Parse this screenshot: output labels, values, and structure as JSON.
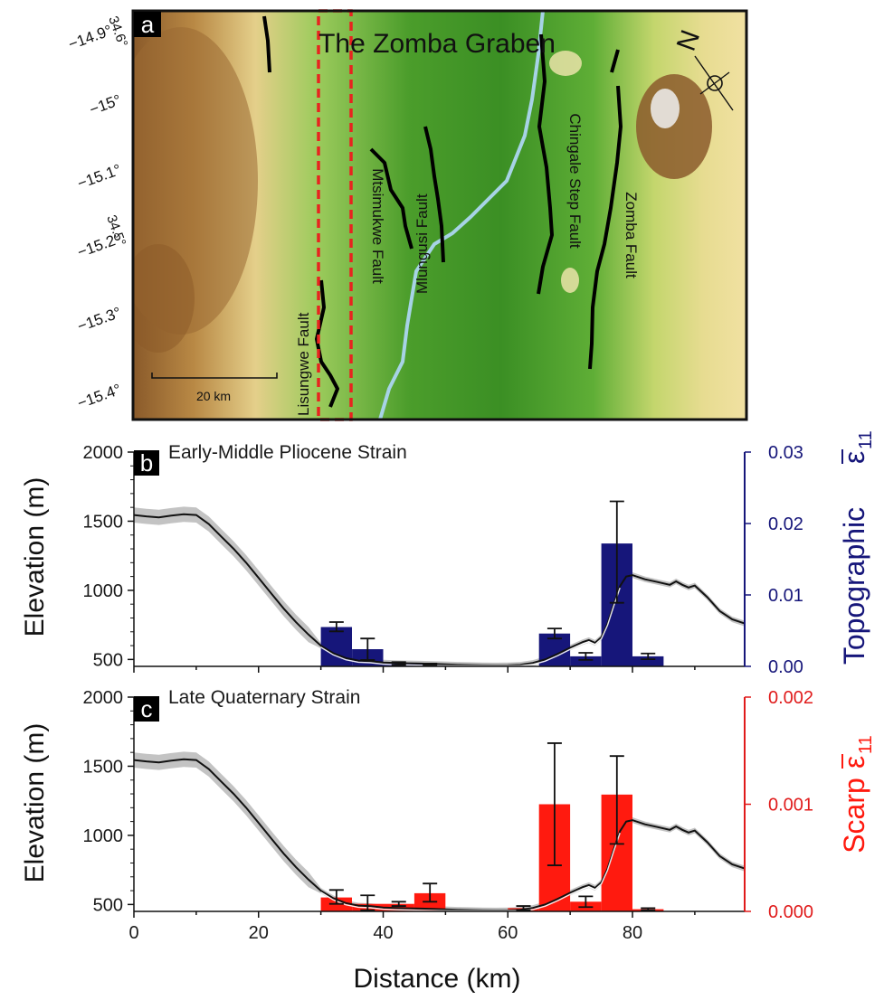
{
  "colors": {
    "topographic": "#16167a",
    "scarp": "#ff1a0f",
    "scarp_axis": "#e01b1b",
    "profile": "#111111",
    "envelope": "#bdbdbd",
    "river": "#a7d3e6",
    "fault": "#000000",
    "box": "#e8231f"
  },
  "map": {
    "panel_letter": "a",
    "title": "The Zomba Graben",
    "lat_labels": [
      "−14.9°",
      "−15°",
      "−15.1°",
      "−15.2°",
      "−15.3°",
      "−15.4°"
    ],
    "lon_labels": [
      "34.6°",
      "34.5°"
    ],
    "faults": [
      "Lisungwe Fault",
      "Mtsimukwe Fault",
      "Mlungusi Fault",
      "Chingale Step Fault",
      "Zomba Fault"
    ],
    "scalebar": "20 km",
    "north": "N"
  },
  "chart_data": [
    {
      "type": "bar",
      "panel": "b",
      "title": "Early-Middle Pliocene Strain",
      "xlabel": "",
      "ylabel": "Elevation (m)",
      "y2label_text": "Topographic",
      "y2label_symbol": "ε",
      "y2label_subscript": "11",
      "xlim": [
        0,
        98
      ],
      "ylim": [
        450,
        2000
      ],
      "y_ticks": [
        "500",
        "1000",
        "1500",
        "2000"
      ],
      "y2lim": [
        0,
        0.03
      ],
      "y2_ticks": [
        "0.00",
        "0.01",
        "0.02",
        "0.03"
      ],
      "bar_width": 5,
      "bars": [
        {
          "x": 32.5,
          "value": 0.0055,
          "err_lo": 0.0049,
          "err_hi": 0.0062
        },
        {
          "x": 37.5,
          "value": 0.0024,
          "err_lo": 0.0009,
          "err_hi": 0.0039
        },
        {
          "x": 42.5,
          "value": 0.0004,
          "err_lo": 0.0002,
          "err_hi": 0.0006
        },
        {
          "x": 47.5,
          "value": 0.0003,
          "err_lo": 0.0002,
          "err_hi": 0.0004
        },
        {
          "x": 67.5,
          "value": 0.0046,
          "err_lo": 0.0039,
          "err_hi": 0.0053
        },
        {
          "x": 72.5,
          "value": 0.0014,
          "err_lo": 0.0009,
          "err_hi": 0.0019
        },
        {
          "x": 77.5,
          "value": 0.0172,
          "err_lo": 0.0089,
          "err_hi": 0.0231
        },
        {
          "x": 82.5,
          "value": 0.0014,
          "err_lo": 0.001,
          "err_hi": 0.0018
        }
      ],
      "elevation_profile": {
        "x": [
          0,
          2,
          4,
          6,
          8,
          10,
          12,
          14,
          16,
          18,
          20,
          22,
          24,
          26,
          28,
          30,
          32,
          34,
          36,
          38,
          40,
          42,
          44,
          46,
          48,
          50,
          52,
          54,
          56,
          58,
          60,
          62,
          64,
          66,
          68,
          70,
          72,
          73,
          74,
          75,
          76,
          77,
          78,
          79,
          80,
          82,
          84,
          86,
          87,
          88,
          89,
          90,
          92,
          94,
          96,
          98
        ],
        "y": [
          1545,
          1535,
          1528,
          1540,
          1550,
          1545,
          1480,
          1390,
          1300,
          1200,
          1090,
          980,
          870,
          770,
          680,
          600,
          545,
          510,
          492,
          488,
          478,
          474,
          472,
          470,
          468,
          465,
          462,
          460,
          458,
          457,
          458,
          462,
          475,
          500,
          540,
          585,
          625,
          640,
          620,
          660,
          760,
          900,
          1030,
          1100,
          1110,
          1080,
          1060,
          1040,
          1065,
          1040,
          1020,
          1035,
          950,
          850,
          790,
          760
        ]
      }
    },
    {
      "type": "bar",
      "panel": "c",
      "title": "Late Quaternary Strain",
      "xlabel": "Distance (km)",
      "ylabel": "Elevation (m)",
      "y2label_text": "Scarp",
      "y2label_symbol": "ε",
      "y2label_subscript": "11",
      "xlim": [
        0,
        98
      ],
      "x_ticks": [
        "0",
        "20",
        "40",
        "60",
        "80"
      ],
      "ylim": [
        450,
        2000
      ],
      "y_ticks": [
        "500",
        "1000",
        "1500",
        "2000"
      ],
      "y2lim": [
        0,
        0.002
      ],
      "y2_ticks": [
        "0.000",
        "0.001",
        "0.002"
      ],
      "bar_width": 5,
      "bars": [
        {
          "x": 32.5,
          "value": 0.00013,
          "err_lo": 7e-05,
          "err_hi": 0.0002
        },
        {
          "x": 37.5,
          "value": 7e-05,
          "err_lo": 1e-05,
          "err_hi": 0.00015
        },
        {
          "x": 42.5,
          "value": 7e-05,
          "err_lo": 5e-05,
          "err_hi": 9e-05
        },
        {
          "x": 47.5,
          "value": 0.00017,
          "err_lo": 9e-05,
          "err_hi": 0.00026
        },
        {
          "x": 62.5,
          "value": 3e-05,
          "err_lo": 1e-05,
          "err_hi": 5e-05
        },
        {
          "x": 67.5,
          "value": 0.001,
          "err_lo": 0.00043,
          "err_hi": 0.00157
        },
        {
          "x": 72.5,
          "value": 9e-05,
          "err_lo": 4e-05,
          "err_hi": 0.00014
        },
        {
          "x": 77.5,
          "value": 0.00109,
          "err_lo": 0.00063,
          "err_hi": 0.00145
        },
        {
          "x": 82.5,
          "value": 2e-05,
          "err_lo": 1e-05,
          "err_hi": 3e-05
        }
      ],
      "elevation_profile": {
        "x": [
          0,
          2,
          4,
          6,
          8,
          10,
          12,
          14,
          16,
          18,
          20,
          22,
          24,
          26,
          28,
          30,
          32,
          34,
          36,
          38,
          40,
          42,
          44,
          46,
          48,
          50,
          52,
          54,
          56,
          58,
          60,
          62,
          64,
          66,
          68,
          70,
          72,
          73,
          74,
          75,
          76,
          77,
          78,
          79,
          80,
          82,
          84,
          86,
          87,
          88,
          89,
          90,
          92,
          94,
          96,
          98
        ],
        "y": [
          1545,
          1535,
          1528,
          1540,
          1550,
          1545,
          1480,
          1390,
          1300,
          1200,
          1090,
          980,
          870,
          770,
          680,
          600,
          545,
          510,
          492,
          488,
          478,
          474,
          472,
          470,
          468,
          465,
          462,
          460,
          458,
          457,
          458,
          462,
          475,
          500,
          540,
          585,
          625,
          640,
          620,
          660,
          760,
          900,
          1030,
          1100,
          1110,
          1080,
          1060,
          1040,
          1065,
          1040,
          1020,
          1035,
          950,
          850,
          790,
          760
        ]
      }
    }
  ]
}
